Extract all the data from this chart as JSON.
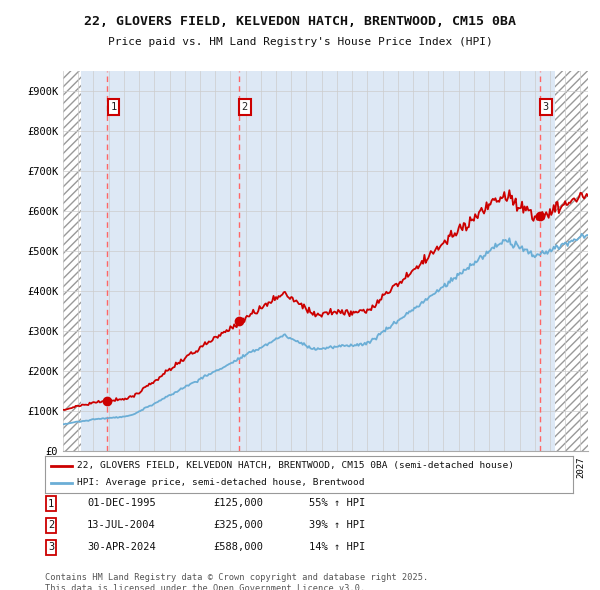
{
  "title": "22, GLOVERS FIELD, KELVEDON HATCH, BRENTWOOD, CM15 0BA",
  "subtitle": "Price paid vs. HM Land Registry's House Price Index (HPI)",
  "ylim": [
    0,
    950000
  ],
  "yticks": [
    0,
    100000,
    200000,
    300000,
    400000,
    500000,
    600000,
    700000,
    800000,
    900000
  ],
  "ytick_labels": [
    "£0",
    "£100K",
    "£200K",
    "£300K",
    "£400K",
    "£500K",
    "£600K",
    "£700K",
    "£800K",
    "£900K"
  ],
  "xlim_start": 1993.0,
  "xlim_end": 2027.5,
  "sale_dates": [
    1995.92,
    2004.54,
    2024.33
  ],
  "sale_prices": [
    125000,
    325000,
    588000
  ],
  "sale_labels": [
    "1",
    "2",
    "3"
  ],
  "sale_date_str": [
    "01-DEC-1995",
    "13-JUL-2004",
    "30-APR-2024"
  ],
  "sale_price_str": [
    "£125,000",
    "£325,000",
    "£588,000"
  ],
  "sale_hpi_str": [
    "55% ↑ HPI",
    "39% ↑ HPI",
    "14% ↑ HPI"
  ],
  "property_color": "#cc0000",
  "hpi_color": "#6baed6",
  "grid_color": "#cccccc",
  "vline_color": "#ff6666",
  "legend_label_property": "22, GLOVERS FIELD, KELVEDON HATCH, BRENTWOOD, CM15 0BA (semi-detached house)",
  "legend_label_hpi": "HPI: Average price, semi-detached house, Brentwood",
  "footer_text": "Contains HM Land Registry data © Crown copyright and database right 2025.\nThis data is licensed under the Open Government Licence v3.0.",
  "bg_color": "#ffffff",
  "plot_bg_color": "#dde8f5",
  "hatch_left_end": 1994.2,
  "hatch_right_start": 2025.3
}
